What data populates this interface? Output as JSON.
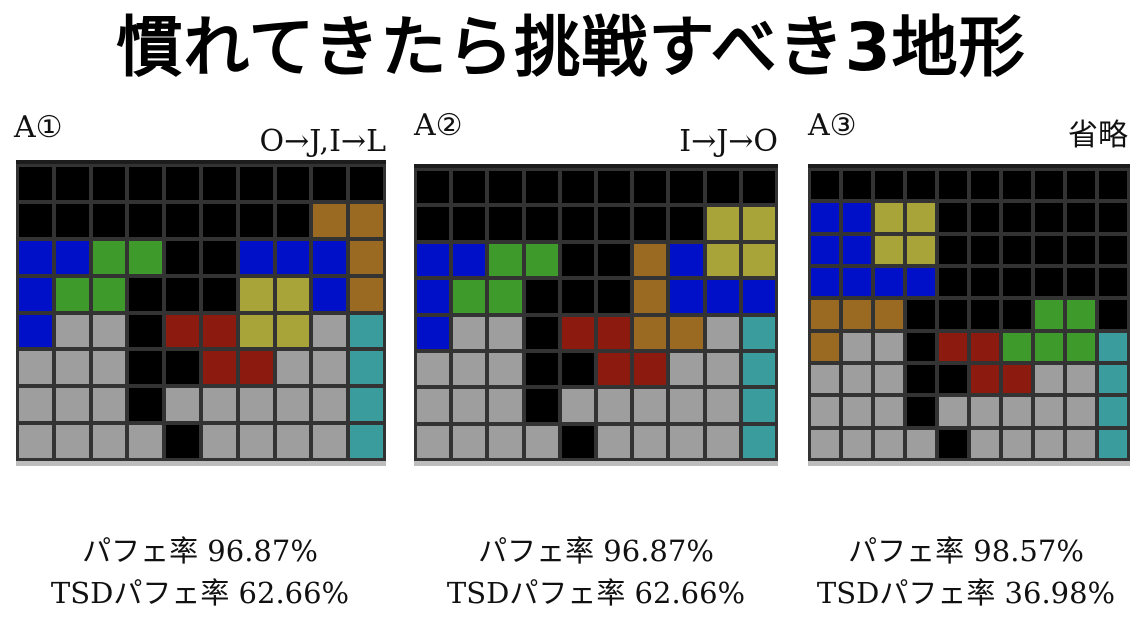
{
  "title": "慣れてきたら挑戦すべき3地形",
  "colors": {
    "X": "#000000",
    "G": "#9e9e9e",
    "B": "#0010c8",
    "g": "#3e9a2a",
    "y": "#a8a43a",
    "o": "#9a6a22",
    "r": "#8c1a0e",
    "c": "#3a9c9c",
    "gridline": "#333333",
    "frame_top": "#1c1c1c",
    "frame_bottom": "#bdbdbd"
  },
  "panels": [
    {
      "label": "A①",
      "sequence": "O→J,I→L",
      "stats_line1": "パフェ率 96.87%",
      "stats_line2": "TSDパフェ率 62.66%",
      "rows": [
        "XXXXXXXXXX",
        "XXXXXXXXoo",
        "BBggXXBBBo",
        "BggXXXyyBo",
        "BGGXrryyGc",
        "GGGXXrrGGc",
        "GGGXGGGGGc",
        "GGGGXGGGGc"
      ]
    },
    {
      "label": "A②",
      "sequence": "I→J→O",
      "stats_line1": "パフェ率 96.87%",
      "stats_line2": "TSDパフェ率 62.66%",
      "rows": [
        "XXXXXXXXXX",
        "XXXXXXXXyy",
        "BBggXXoByy",
        "BggXXXoBBB",
        "BGGXrrooGc",
        "GGGXXrrGGc",
        "GGGXGGGGGc",
        "GGGGXGGGGc"
      ]
    },
    {
      "label": "A③",
      "sequence": "省略",
      "stats_line1": "パフェ率 98.57%",
      "stats_line2": "TSDパフェ率 36.98%",
      "rows": [
        "XXXXXXXXXX",
        "BByyXXXXXX",
        "BByyXXXXXX",
        "BBBBXXXXXX",
        "oooXXXXggX",
        "oGGXrrgggc",
        "GGGXXrrGGc",
        "GGGXGGGGGc",
        "GGGGXGGGGc"
      ]
    }
  ]
}
